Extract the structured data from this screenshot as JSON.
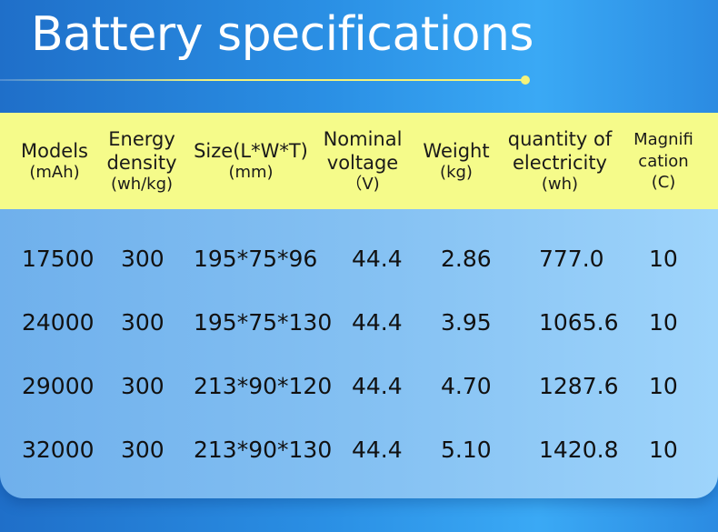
{
  "title": "Battery specifications",
  "table": {
    "headers": [
      {
        "lines": [
          "Models",
          "(mAh)"
        ]
      },
      {
        "lines": [
          "Energy",
          "density",
          "(wh/kg)"
        ]
      },
      {
        "lines": [
          "Size(L*W*T)",
          "(mm)"
        ]
      },
      {
        "lines": [
          "Nominal",
          "voltage",
          "（V)"
        ]
      },
      {
        "lines": [
          "Weight",
          "(kg)"
        ]
      },
      {
        "lines": [
          "quantity of",
          "electricity",
          "(wh)"
        ]
      },
      {
        "lines": [
          "Magnifi",
          "cation",
          "(C)"
        ]
      }
    ],
    "rows": [
      [
        "17500",
        "300",
        "195*75*96",
        "44.4",
        "2.86",
        "777.0",
        "10"
      ],
      [
        "24000",
        "300",
        "195*75*130",
        "44.4",
        "3.95",
        "1065.6",
        "10"
      ],
      [
        "29000",
        "300",
        "213*90*120",
        "44.4",
        "4.70",
        "1287.6",
        "10"
      ],
      [
        "32000",
        "300",
        "213*90*130",
        "44.4",
        "5.10",
        "1420.8",
        "10"
      ]
    ]
  },
  "colors": {
    "header_band": "#f5fb8a",
    "accent_line": "#f4f27a"
  }
}
